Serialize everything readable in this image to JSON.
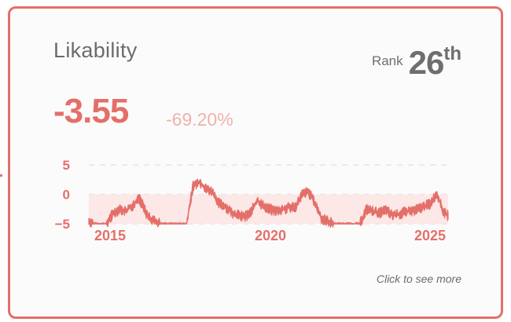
{
  "card": {
    "title": "Likability",
    "rank_label": "Rank",
    "rank_value": "26",
    "rank_suffix": "th",
    "value": "-3.55",
    "change": "-69.20%",
    "footer_link": "Click to see more"
  },
  "colors": {
    "accent": "#e46f69",
    "change_text": "#f0b1ac",
    "band_fill": "#fbe3e2",
    "text_gray": "#6b6b6b"
  },
  "chart_data": {
    "type": "area",
    "title": "",
    "xlabel": "",
    "ylabel": "",
    "y_ticks": [
      "5",
      "0",
      "−5"
    ],
    "x_ticks": [
      "2015",
      "2020",
      "2025"
    ],
    "ylim": [
      -5,
      5
    ],
    "xlim": [
      2014.35,
      2025.55
    ],
    "grid": "horizontal dashed",
    "baseline_band": [
      -5,
      0
    ],
    "series": [
      {
        "name": "Likability",
        "x": [
          2014.35,
          2014.5,
          2014.7,
          2014.9,
          2015.1,
          2015.3,
          2015.5,
          2015.7,
          2015.9,
          2016.0,
          2016.2,
          2016.4,
          2016.6,
          2016.8,
          2017.0,
          2017.2,
          2017.4,
          2017.6,
          2017.8,
          2018.0,
          2018.2,
          2018.4,
          2018.6,
          2018.8,
          2019.0,
          2019.2,
          2019.4,
          2019.6,
          2019.8,
          2020.0,
          2020.2,
          2020.4,
          2020.6,
          2020.8,
          2021.0,
          2021.2,
          2021.4,
          2021.6,
          2021.8,
          2022.0,
          2022.2,
          2022.4,
          2022.6,
          2022.8,
          2023.0,
          2023.2,
          2023.4,
          2023.6,
          2023.8,
          2024.0,
          2024.2,
          2024.4,
          2024.6,
          2024.8,
          2025.0,
          2025.2,
          2025.4,
          2025.55
        ],
        "values": [
          -4.5,
          -5.0,
          -5.0,
          -5.0,
          -3.2,
          -2.5,
          -2.8,
          -2.0,
          -0.5,
          -1.5,
          -3.8,
          -4.5,
          -5.0,
          -5.0,
          -5.0,
          -5.0,
          -5.0,
          1.5,
          2.2,
          1.0,
          0.5,
          -1.5,
          -2.0,
          -3.0,
          -3.5,
          -3.8,
          -3.0,
          -1.0,
          -2.0,
          -2.5,
          -2.8,
          -2.5,
          -2.2,
          -2.0,
          0.0,
          0.5,
          -1.5,
          -4.0,
          -4.5,
          -5.0,
          -5.0,
          -5.0,
          -5.0,
          -5.0,
          -2.5,
          -2.8,
          -3.2,
          -2.6,
          -3.5,
          -3.4,
          -3.0,
          -2.8,
          -2.5,
          -2.0,
          -1.5,
          0.2,
          -3.0,
          -3.55
        ]
      }
    ]
  }
}
